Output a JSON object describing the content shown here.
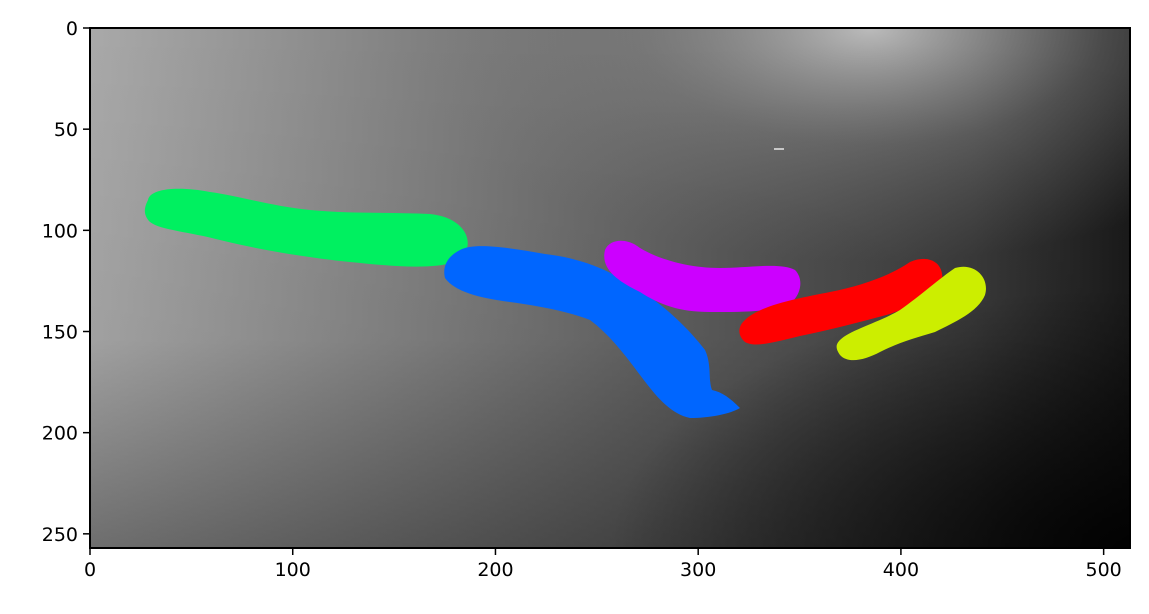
{
  "image": {
    "description_free": true,
    "x_range": [
      0,
      513
    ],
    "y_range": [
      0,
      257
    ],
    "y_axis_inverted": true,
    "x_ticks": [
      0,
      100,
      200,
      300,
      400,
      500
    ],
    "y_ticks": [
      0,
      50,
      100,
      150,
      200,
      250
    ],
    "background": "grayscale gradient, lighter at top-center and left, darkest at bottom-right",
    "overlay_colors": {
      "green": "#00f060",
      "blue": "#0066ff",
      "magenta": "#cc00ff",
      "red": "#ff0000",
      "yellow": "#ccee00"
    }
  }
}
